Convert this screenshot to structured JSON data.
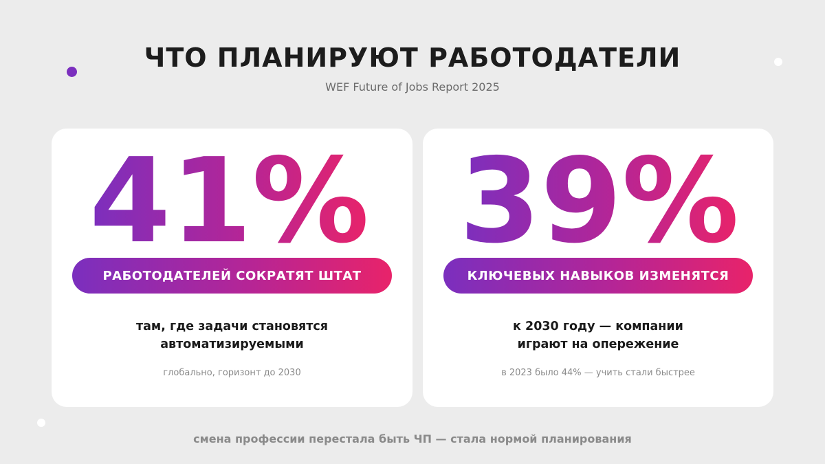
{
  "header": {
    "title": "ЧТО ПЛАНИРУЮТ РАБОТОДАТЕЛИ",
    "subtitle": "WEF Future of Jobs Report 2025"
  },
  "cards": [
    {
      "value": "41%",
      "pill": "РАБОТОДАТЕЛЕЙ СОКРАТЯТ ШТАТ",
      "desc_line1": "там, где задачи становятся",
      "desc_line2": "автоматизируемыми",
      "note": "глобально, горизонт до 2030"
    },
    {
      "value": "39%",
      "pill": "КЛЮЧЕВЫХ НАВЫКОВ ИЗМЕНЯТСЯ",
      "desc_line1": "к 2030 году — компании",
      "desc_line2": "играют на опережение",
      "note": "в 2023 было 44% — учить стали быстрее"
    }
  ],
  "footer": "смена профессии перестала быть ЧП — стала нормой планирования",
  "colors": {
    "gradient_start": "#7b2fbe",
    "gradient_end": "#e8236a",
    "background": "#ececec",
    "card": "#ffffff"
  }
}
